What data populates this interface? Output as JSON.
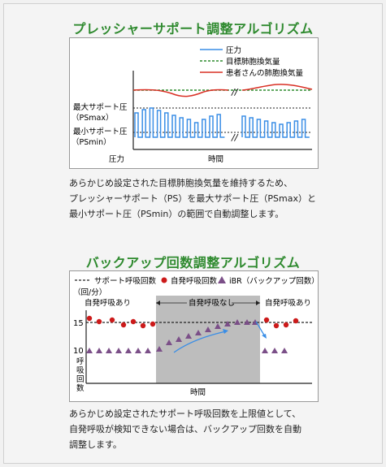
{
  "section1": {
    "title": "プレッシャーサポート調整アルゴリズム",
    "legend": [
      {
        "label": "圧力",
        "color": "#3a8ee6",
        "style": "solid"
      },
      {
        "label": "目標肺胞換気量",
        "color": "#2e8b2e",
        "style": "dashed"
      },
      {
        "label": "患者さんの肺胞換気量",
        "color": "#d93025",
        "style": "solid"
      }
    ],
    "label_psmax": "最大サポート圧",
    "label_psmax2": "（PSmax）",
    "label_psmin": "最小サポート圧",
    "label_psmin2": "（PSmin）",
    "y_axis_label": "圧力",
    "x_axis_label": "時間",
    "break_mark": "//",
    "caption": [
      "あらかじめ設定された目標肺胞換気量を維持するため、",
      "プレッシャーサポート（PS）を最大サポート圧（PSmax）と",
      "最小サポート圧（PSmin）の範囲で自動調整します。"
    ]
  },
  "section2": {
    "title": "バックアップ回数調整アルゴリズム",
    "legend": [
      {
        "label": "サポート呼吸回数",
        "color": "#222222",
        "style": "dashed"
      },
      {
        "label": "自発呼吸回数",
        "color": "#cc1a1a",
        "style": "dot"
      },
      {
        "label": "iBR（バックアップ回数）",
        "color": "#7b4f88",
        "style": "triangle"
      }
    ],
    "unit": "（回/分）",
    "region_left": "自発呼吸あり",
    "region_mid": "自発呼吸なし",
    "region_right": "自発呼吸あり",
    "tick_15": "15",
    "tick_10": "10",
    "y_axis_label": "呼吸回数",
    "x_axis_label": "時間",
    "caption": [
      "あらかじめ設定されたサポート呼吸回数を上限値として、",
      "自発呼吸が検知できない場合は、バックアップ回数を自動",
      "調整します。"
    ]
  }
}
